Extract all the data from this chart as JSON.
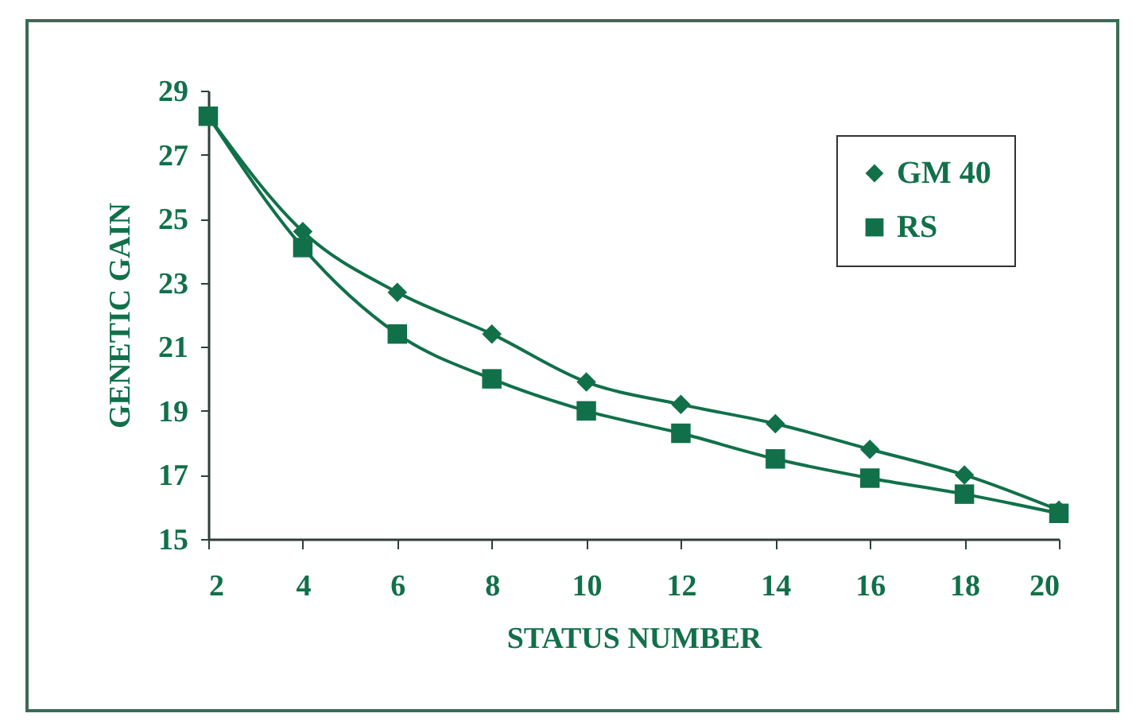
{
  "chart_data": {
    "type": "line",
    "xlabel": "STATUS NUMBER",
    "ylabel": "GENETIC GAIN",
    "x": [
      2,
      4,
      6,
      8,
      10,
      12,
      14,
      16,
      18,
      20
    ],
    "series": [
      {
        "name": "GM 40",
        "color": "#11704a",
        "marker": "diamond",
        "values": [
          28.2,
          24.6,
          22.7,
          21.4,
          19.9,
          19.2,
          18.6,
          17.8,
          17.0,
          15.9
        ]
      },
      {
        "name": "RS",
        "color": "#11704a",
        "marker": "square",
        "values": [
          28.2,
          24.1,
          21.4,
          20.0,
          19.0,
          18.3,
          17.5,
          16.9,
          16.4,
          15.8
        ]
      }
    ],
    "xlim": [
      2,
      20
    ],
    "xticks": [
      2,
      4,
      6,
      8,
      10,
      12,
      14,
      16,
      18,
      20
    ],
    "ylim": [
      15,
      29
    ],
    "yticks": [
      15,
      17,
      19,
      21,
      23,
      25,
      27,
      29
    ],
    "grid": false,
    "legend": "top right",
    "line_style": "solid"
  }
}
